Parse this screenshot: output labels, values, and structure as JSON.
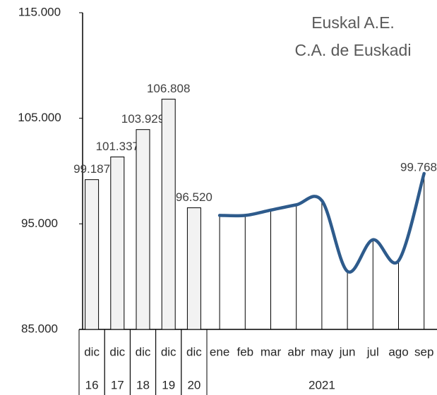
{
  "chart_data": {
    "type": "bar-line",
    "title": "Euskal A.E.",
    "subtitle": "C.A. de Euskadi",
    "categories": [
      "dic",
      "dic",
      "dic",
      "dic",
      "dic",
      "ene",
      "feb",
      "mar",
      "abr",
      "may",
      "jun",
      "jul",
      "ago",
      "sep"
    ],
    "groups": [
      "16",
      "17",
      "18",
      "19",
      "20",
      "2021"
    ],
    "group_spans": [
      1,
      1,
      1,
      1,
      1,
      9
    ],
    "series": [
      {
        "type": "bar",
        "color": "#f2f2f2",
        "values": [
          99187,
          101337,
          103929,
          106808,
          96520,
          null,
          null,
          null,
          null,
          null,
          null,
          null,
          null,
          null
        ],
        "value_labels": [
          "99.187",
          "101.337",
          "103.929",
          "106.808",
          "96.520",
          null,
          null,
          null,
          null,
          null,
          null,
          null,
          null,
          null
        ]
      },
      {
        "type": "line",
        "color": "#2e5b8c",
        "values": [
          null,
          null,
          null,
          null,
          null,
          95800,
          95800,
          96300,
          96800,
          97200,
          90500,
          93500,
          91500,
          99768
        ],
        "value_labels": [
          null,
          null,
          null,
          null,
          null,
          null,
          null,
          null,
          null,
          null,
          null,
          null,
          null,
          "99.768"
        ]
      }
    ],
    "ylim": [
      85000,
      115000
    ],
    "yticks": [
      {
        "value": 85000,
        "label": "85.000"
      },
      {
        "value": 95000,
        "label": "95.000"
      },
      {
        "value": 105000,
        "label": "105.000"
      },
      {
        "value": 115000,
        "label": "115.000"
      }
    ],
    "grid": false
  }
}
